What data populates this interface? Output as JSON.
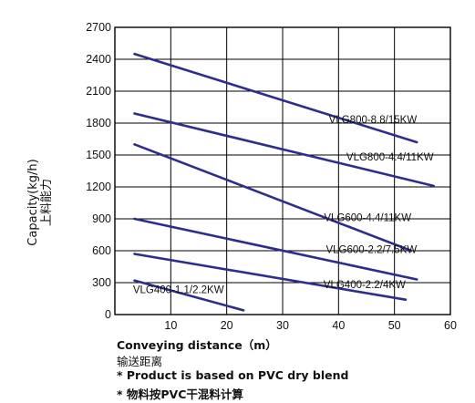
{
  "chart_data": {
    "type": "line",
    "xlabel": "Conveying distance（m）",
    "xlabel_cn": "输送距离",
    "ylabel": "Capacity(kg/h)",
    "ylabel_cn": "上料能力",
    "xlim": [
      0,
      60
    ],
    "ylim": [
      0,
      2700
    ],
    "x_ticks": [
      10,
      20,
      30,
      40,
      50,
      60
    ],
    "y_ticks": [
      0,
      300,
      600,
      900,
      1200,
      1500,
      1800,
      2100,
      2400,
      2700
    ],
    "x_gridlines": [
      10,
      20,
      30,
      40,
      50
    ],
    "y_gridlines": [
      300,
      600,
      900,
      1200,
      1500,
      1800,
      2100,
      2400
    ],
    "grid": true,
    "line_color": "#2d2d8f",
    "series": [
      {
        "name": "VLG800-8.8/15KW",
        "x": [
          3.5,
          54
        ],
        "y": [
          2450,
          1620
        ],
        "label_anchor": [
          54,
          1800
        ]
      },
      {
        "name": "VLG800-4.4/11KW",
        "x": [
          3.5,
          57
        ],
        "y": [
          1890,
          1210
        ],
        "label_anchor": [
          57,
          1450
        ]
      },
      {
        "name": "VLG600-4.4/11KW",
        "x": [
          3.5,
          53
        ],
        "y": [
          1600,
          600
        ],
        "label_anchor": [
          53,
          880
        ]
      },
      {
        "name": "VLG600-2.2/7.5KW",
        "x": [
          3.5,
          54
        ],
        "y": [
          900,
          330
        ],
        "label_anchor": [
          54,
          580
        ]
      },
      {
        "name": "VLG400-2.2/4KW",
        "x": [
          3.5,
          52
        ],
        "y": [
          570,
          140
        ],
        "label_anchor": [
          52,
          250
        ]
      },
      {
        "name": "VLG400-1.1/2.2KW",
        "x": [
          3.5,
          23
        ],
        "y": [
          320,
          40
        ],
        "label_anchor": [
          19.5,
          200
        ]
      }
    ]
  },
  "notes": {
    "product": "* Product is based on PVC dry blend",
    "product_cn": "* 物料按PVC干混料计算"
  }
}
